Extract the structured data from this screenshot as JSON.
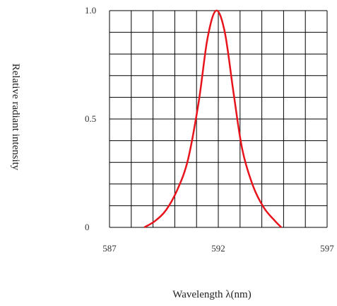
{
  "chart_data": {
    "type": "line",
    "title": "",
    "xlabel": "Wavelength λ(nm)",
    "ylabel": "Relative radiant intensity",
    "xlim": [
      587,
      597
    ],
    "ylim": [
      0,
      1.0
    ],
    "x_tick_labels": [
      "587",
      "592",
      "597"
    ],
    "y_tick_labels": [
      "0",
      "0.5",
      "1.0"
    ],
    "grid": true,
    "series": [
      {
        "name": "",
        "color": "#e8141c",
        "x": [
          588.6,
          589.1,
          589.6,
          590.1,
          590.6,
          591.1,
          591.5,
          591.9,
          592.3,
          592.7,
          593.1,
          593.6,
          594.1,
          594.6,
          594.9
        ],
        "y": [
          0.0,
          0.03,
          0.08,
          0.17,
          0.31,
          0.58,
          0.87,
          1.0,
          0.9,
          0.62,
          0.36,
          0.19,
          0.09,
          0.03,
          0.0
        ]
      }
    ]
  },
  "colors": {
    "grid": "#000000",
    "curve": "#e8141c"
  }
}
